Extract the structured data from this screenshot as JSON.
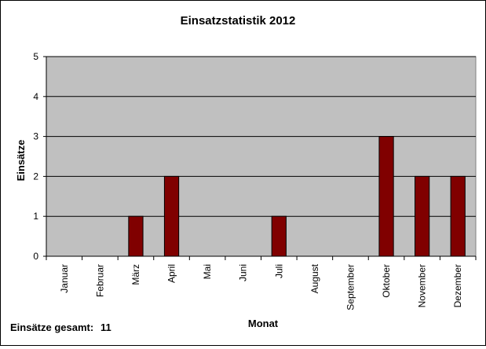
{
  "chart_data": {
    "type": "bar",
    "title": "Einsatzstatistik 2012",
    "xlabel": "Monat",
    "ylabel": "Einsätze",
    "categories": [
      "Januar",
      "Februar",
      "März",
      "April",
      "Mai",
      "Juni",
      "Juli",
      "August",
      "September",
      "Oktober",
      "November",
      "Dezember"
    ],
    "values": [
      0,
      0,
      1,
      2,
      0,
      0,
      1,
      0,
      0,
      3,
      2,
      2
    ],
    "ylim": [
      0,
      5
    ],
    "yticks": [
      "0",
      "1",
      "2",
      "3",
      "4",
      "5"
    ],
    "grid": true,
    "legend": "none",
    "colors": {
      "bar": "#800000",
      "plot_bg": "#c0c0c0",
      "grid": "#000000"
    }
  },
  "footer": {
    "total_label": "Einsätze gesamt:",
    "total_value": "11"
  }
}
